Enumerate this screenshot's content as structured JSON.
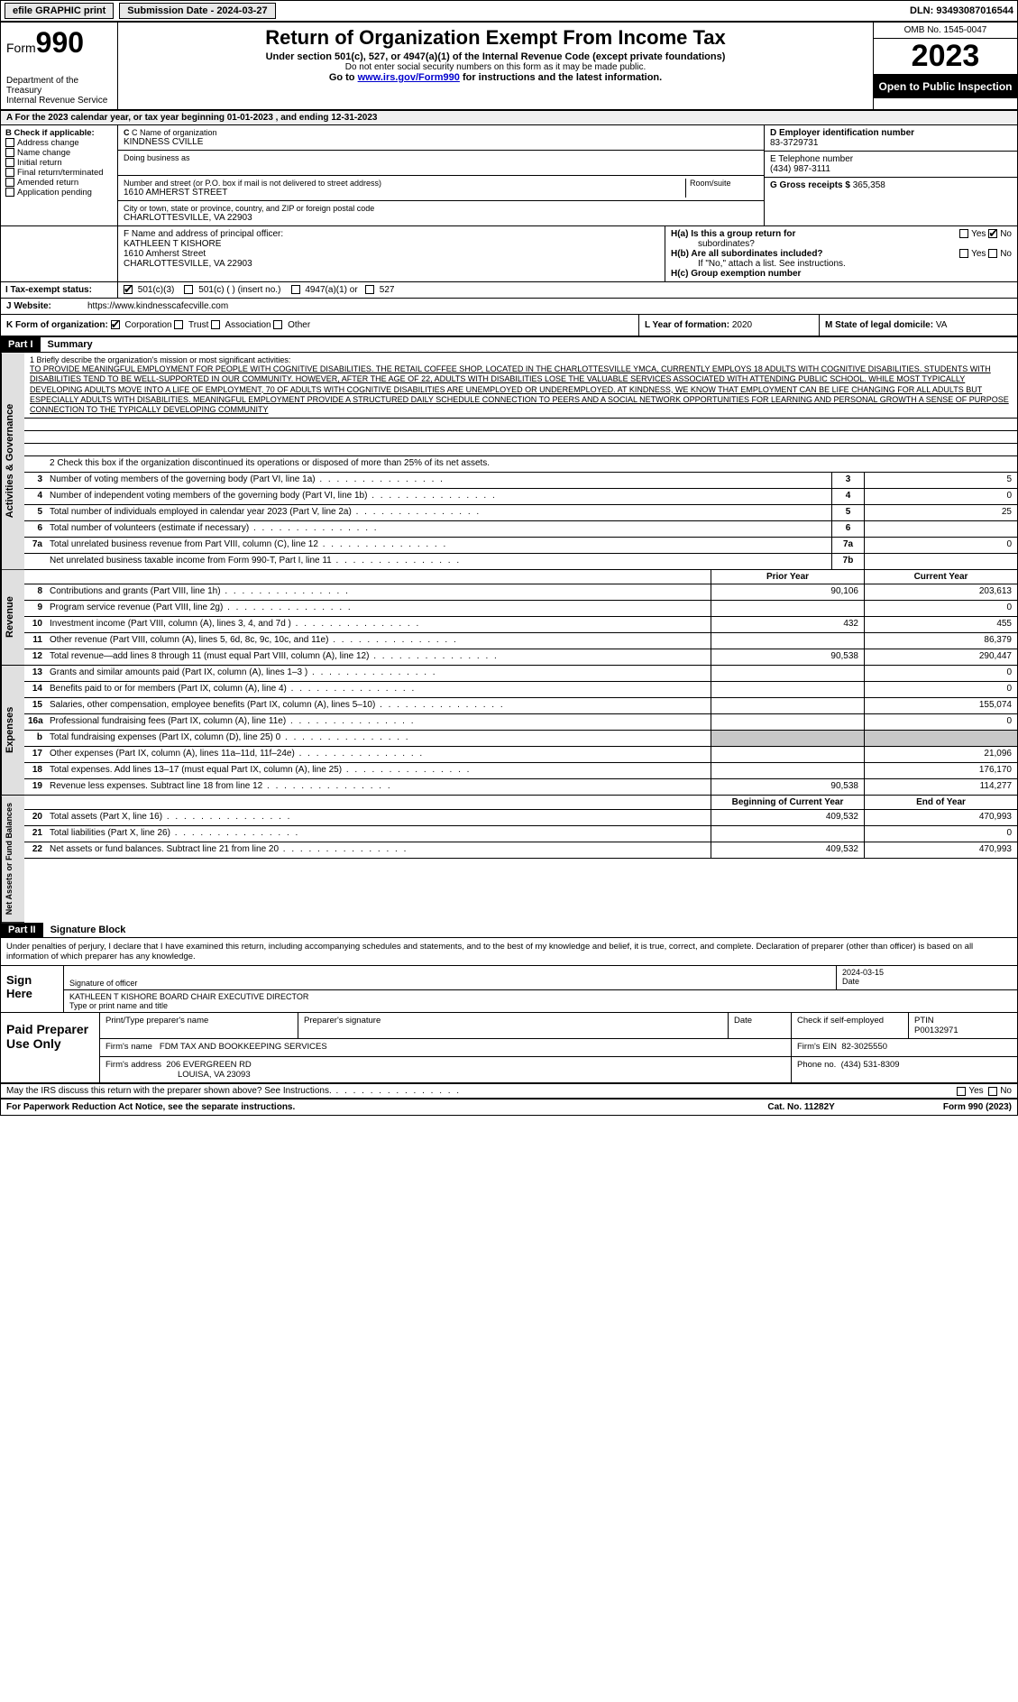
{
  "topbar": {
    "efile": "efile GRAPHIC print",
    "submission": "Submission Date - 2024-03-27",
    "dln": "DLN: 93493087016544"
  },
  "header": {
    "form_label": "Form",
    "form_num": "990",
    "dept": "Department of the Treasury",
    "irs": "Internal Revenue Service",
    "title": "Return of Organization Exempt From Income Tax",
    "sub1": "Under section 501(c), 527, or 4947(a)(1) of the Internal Revenue Code (except private foundations)",
    "sub2": "Do not enter social security numbers on this form as it may be made public.",
    "sub3_pre": "Go to ",
    "sub3_link": "www.irs.gov/Form990",
    "sub3_post": " for instructions and the latest information.",
    "omb": "OMB No. 1545-0047",
    "year": "2023",
    "open": "Open to Public Inspection"
  },
  "calendar": "A For the 2023 calendar year, or tax year beginning 01-01-2023   , and ending 12-31-2023",
  "boxB": {
    "title": "B Check if applicable:",
    "items": [
      "Address change",
      "Name change",
      "Initial return",
      "Final return/terminated",
      "Amended return",
      "Application pending"
    ]
  },
  "boxC": {
    "label_name": "C Name of organization",
    "name": "KINDNESS CVILLE",
    "dba_label": "Doing business as",
    "addr_label": "Number and street (or P.O. box if mail is not delivered to street address)",
    "room_label": "Room/suite",
    "addr": "1610 AMHERST STREET",
    "city_label": "City or town, state or province, country, and ZIP or foreign postal code",
    "city": "CHARLOTTESVILLE, VA  22903"
  },
  "boxD": {
    "label": "D Employer identification number",
    "val": "83-3729731"
  },
  "boxE": {
    "label": "E Telephone number",
    "val": "(434) 987-3111"
  },
  "boxG": {
    "label": "G Gross receipts $",
    "val": "365,358"
  },
  "boxF": {
    "label": "F  Name and address of principal officer:",
    "name": "KATHLEEN T KISHORE",
    "addr1": "1610 Amherst Street",
    "addr2": "CHARLOTTESVILLE, VA  22903"
  },
  "boxH": {
    "a_label": "H(a)  Is this a group return for",
    "a_sub": "subordinates?",
    "b_label": "H(b)  Are all subordinates included?",
    "b_note": "If \"No,\" attach a list. See instructions.",
    "c_label": "H(c)  Group exemption number",
    "yes": "Yes",
    "no": "No"
  },
  "boxI": {
    "label": "I  Tax-exempt status:",
    "opts": [
      "501(c)(3)",
      "501(c) (  ) (insert no.)",
      "4947(a)(1) or",
      "527"
    ]
  },
  "boxJ": {
    "label": "J  Website:",
    "val": "https://www.kindnesscafecville.com"
  },
  "boxK": {
    "label": "K Form of organization:",
    "opts": [
      "Corporation",
      "Trust",
      "Association",
      "Other"
    ]
  },
  "boxL": {
    "label": "L Year of formation:",
    "val": "2020"
  },
  "boxM": {
    "label": "M State of legal domicile:",
    "val": "VA"
  },
  "part1": {
    "hdr": "Part I",
    "title": "Summary"
  },
  "mission": {
    "label": "1  Briefly describe the organization's mission or most significant activities:",
    "text": "TO PROVIDE MEANINGFUL EMPLOYMENT FOR PEOPLE WITH COGNITIVE DISABILITIES. THE RETAIL COFFEE SHOP, LOCATED IN THE CHARLOTTESVILLE YMCA, CURRENTLY EMPLOYS 18 ADULTS WITH COGNITIVE DISABILITIES. STUDENTS WITH DISABILITIES TEND TO BE WELL-SUPPORTED IN OUR COMMUNITY. HOWEVER, AFTER THE AGE OF 22, ADULTS WITH DISABILITIES LOSE THE VALUABLE SERVICES ASSOCIATED WITH ATTENDING PUBLIC SCHOOL. WHILE MOST TYPICALLY DEVELOPING ADULTS MOVE INTO A LIFE OF EMPLOYMENT, 70 OF ADULTS WITH COGNITIVE DISABILITIES ARE UNEMPLOYED OR UNDEREMPLOYED. AT KINDNESS, WE KNOW THAT EMPLOYMENT CAN BE LIFE CHANGING FOR ALL ADULTS BUT ESPECIALLY ADULTS WITH DISABILITIES. MEANINGFUL EMPLOYMENT PROVIDE A STRUCTURED DAILY SCHEDULE CONNECTION TO PEERS AND A SOCIAL NETWORK OPPORTUNITIES FOR LEARNING AND PERSONAL GROWTH A SENSE OF PURPOSE CONNECTION TO THE TYPICALLY DEVELOPING COMMUNITY"
  },
  "activities": {
    "line2": "2   Check this box      if the organization discontinued its operations or disposed of more than 25% of its net assets.",
    "rows": [
      {
        "n": "3",
        "d": "Number of voting members of the governing body (Part VI, line 1a)",
        "box": "3",
        "v": "5"
      },
      {
        "n": "4",
        "d": "Number of independent voting members of the governing body (Part VI, line 1b)",
        "box": "4",
        "v": "0"
      },
      {
        "n": "5",
        "d": "Total number of individuals employed in calendar year 2023 (Part V, line 2a)",
        "box": "5",
        "v": "25"
      },
      {
        "n": "6",
        "d": "Total number of volunteers (estimate if necessary)",
        "box": "6",
        "v": ""
      },
      {
        "n": "7a",
        "d": "Total unrelated business revenue from Part VIII, column (C), line 12",
        "box": "7a",
        "v": "0"
      },
      {
        "n": "",
        "d": "Net unrelated business taxable income from Form 990-T, Part I, line 11",
        "box": "7b",
        "v": ""
      }
    ]
  },
  "twocol_hdr": {
    "prior": "Prior Year",
    "current": "Current Year"
  },
  "revenue": {
    "label": "Revenue",
    "rows": [
      {
        "n": "8",
        "d": "Contributions and grants (Part VIII, line 1h)",
        "p": "90,106",
        "c": "203,613"
      },
      {
        "n": "9",
        "d": "Program service revenue (Part VIII, line 2g)",
        "p": "",
        "c": "0"
      },
      {
        "n": "10",
        "d": "Investment income (Part VIII, column (A), lines 3, 4, and 7d )",
        "p": "432",
        "c": "455"
      },
      {
        "n": "11",
        "d": "Other revenue (Part VIII, column (A), lines 5, 6d, 8c, 9c, 10c, and 11e)",
        "p": "",
        "c": "86,379"
      },
      {
        "n": "12",
        "d": "Total revenue—add lines 8 through 11 (must equal Part VIII, column (A), line 12)",
        "p": "90,538",
        "c": "290,447"
      }
    ]
  },
  "expenses": {
    "label": "Expenses",
    "rows": [
      {
        "n": "13",
        "d": "Grants and similar amounts paid (Part IX, column (A), lines 1–3 )",
        "p": "",
        "c": "0"
      },
      {
        "n": "14",
        "d": "Benefits paid to or for members (Part IX, column (A), line 4)",
        "p": "",
        "c": "0"
      },
      {
        "n": "15",
        "d": "Salaries, other compensation, employee benefits (Part IX, column (A), lines 5–10)",
        "p": "",
        "c": "155,074"
      },
      {
        "n": "16a",
        "d": "Professional fundraising fees (Part IX, column (A), line 11e)",
        "p": "",
        "c": "0"
      },
      {
        "n": "b",
        "d": "Total fundraising expenses (Part IX, column (D), line 25) 0",
        "p": "shade",
        "c": "shade"
      },
      {
        "n": "17",
        "d": "Other expenses (Part IX, column (A), lines 11a–11d, 11f–24e)",
        "p": "",
        "c": "21,096"
      },
      {
        "n": "18",
        "d": "Total expenses. Add lines 13–17 (must equal Part IX, column (A), line 25)",
        "p": "",
        "c": "176,170"
      },
      {
        "n": "19",
        "d": "Revenue less expenses. Subtract line 18 from line 12",
        "p": "90,538",
        "c": "114,277"
      }
    ]
  },
  "netassets": {
    "label": "Net Assets or Fund Balances",
    "hdr_begin": "Beginning of Current Year",
    "hdr_end": "End of Year",
    "rows": [
      {
        "n": "20",
        "d": "Total assets (Part X, line 16)",
        "p": "409,532",
        "c": "470,993"
      },
      {
        "n": "21",
        "d": "Total liabilities (Part X, line 26)",
        "p": "",
        "c": "0"
      },
      {
        "n": "22",
        "d": "Net assets or fund balances. Subtract line 21 from line 20",
        "p": "409,532",
        "c": "470,993"
      }
    ]
  },
  "part2": {
    "hdr": "Part II",
    "title": "Signature Block"
  },
  "sig": {
    "declare": "Under penalties of perjury, I declare that I have examined this return, including accompanying schedules and statements, and to the best of my knowledge and belief, it is true, correct, and complete. Declaration of preparer (other than officer) is based on all information of which preparer has any knowledge.",
    "sign_here": "Sign Here",
    "sig_officer": "Signature of officer",
    "date_label": "Date",
    "date_val": "2024-03-15",
    "name_title": "KATHLEEN T KISHORE  BOARD CHAIR EXECUTIVE DIRECTOR",
    "type_label": "Type or print name and title"
  },
  "prep": {
    "label": "Paid Preparer Use Only",
    "print_label": "Print/Type preparer's name",
    "sig_label": "Preparer's signature",
    "date_label": "Date",
    "check_label": "Check        if self-employed",
    "ptin_label": "PTIN",
    "ptin": "P00132971",
    "firm_name_label": "Firm's name",
    "firm_name": "FDM TAX AND BOOKKEEPING SERVICES",
    "firm_ein_label": "Firm's EIN",
    "firm_ein": "82-3025550",
    "firm_addr_label": "Firm's address",
    "firm_addr1": "206 EVERGREEN RD",
    "firm_addr2": "LOUISA, VA  23093",
    "phone_label": "Phone no.",
    "phone": "(434) 531-8309"
  },
  "footer": {
    "discuss": "May the IRS discuss this return with the preparer shown above? See Instructions.",
    "yes": "Yes",
    "no": "No",
    "paperwork": "For Paperwork Reduction Act Notice, see the separate instructions.",
    "cat": "Cat. No. 11282Y",
    "form": "Form 990 (2023)"
  },
  "vlabels": {
    "act_gov": "Activities & Governance",
    "rev": "Revenue",
    "exp": "Expenses",
    "net": "Net Assets or Fund Balances"
  },
  "colors": {
    "black": "#000000",
    "white": "#ffffff",
    "shade": "#c8c8c8",
    "vert_bg": "#e0e0e0",
    "link": "#0000cc"
  }
}
